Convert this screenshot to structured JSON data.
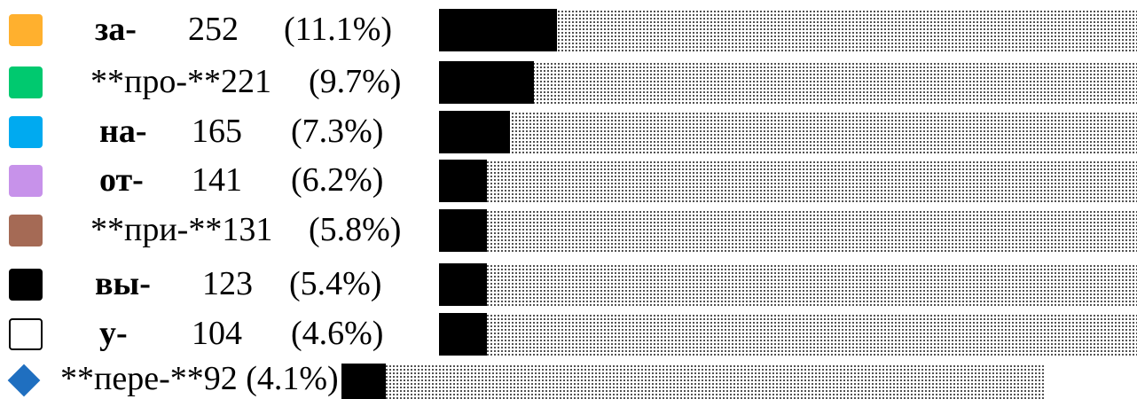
{
  "rows": [
    {
      "prefix": "за-",
      "count": "252",
      "pct": "(11.1%)",
      "color": "#ffb02e",
      "style": "bold",
      "fill": 0.167
    },
    {
      "prefix": "**про-**",
      "count": "221",
      "pct": "(9.7%)",
      "color": "#00c96f",
      "style": "raw",
      "fill": 0.137
    },
    {
      "prefix": "на-",
      "count": "165",
      "pct": "(7.3%)",
      "color": "#00aaf0",
      "style": "bold",
      "fill": 0.103
    },
    {
      "prefix": "от-",
      "count": "141",
      "pct": "(6.2%)",
      "color": "#c792ea",
      "style": "bold",
      "fill": 0.069
    },
    {
      "prefix": "**при-**",
      "count": "131",
      "pct": "(5.8%)",
      "color": "#a56a55",
      "style": "raw",
      "fill": 0.069
    },
    {
      "prefix": "вы-",
      "count": "123",
      "pct": "(5.4%)",
      "color": "#000000",
      "style": "bold",
      "fill": 0.069
    },
    {
      "prefix": "у-",
      "count": "104",
      "pct": "(4.6%)",
      "color": "#ffffff",
      "style": "bold",
      "fill": 0.069
    }
  ],
  "last": {
    "label": "**пере-**92 (4.1%)",
    "color": "#1f6fc0",
    "fill": 0.063
  }
}
